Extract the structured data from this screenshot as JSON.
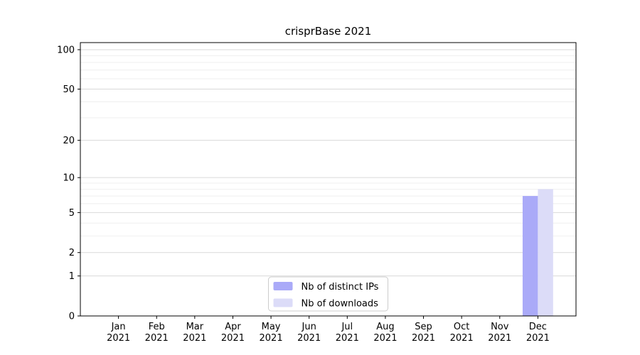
{
  "chart_data": {
    "type": "bar",
    "title": "crisprBase 2021",
    "categories": [
      "Jan",
      "Feb",
      "Mar",
      "Apr",
      "May",
      "Jun",
      "Jul",
      "Aug",
      "Sep",
      "Oct",
      "Nov",
      "Dec"
    ],
    "x_label_second_line": "2021",
    "series": [
      {
        "name": "Nb of distinct IPs",
        "color": "#aaaaf8",
        "values": [
          0,
          0,
          0,
          0,
          0,
          0,
          0,
          0,
          0,
          0,
          0,
          7
        ]
      },
      {
        "name": "Nb of downloads",
        "color": "#dcdcf8",
        "values": [
          0,
          0,
          0,
          0,
          0,
          0,
          0,
          0,
          0,
          0,
          0,
          8
        ]
      }
    ],
    "yscale": "log1p",
    "y_major_ticks": [
      0,
      1,
      2,
      5,
      10,
      20,
      50,
      100
    ],
    "y_minor_ticks": [
      3,
      4,
      6,
      7,
      8,
      9,
      30,
      40,
      60,
      70,
      80,
      90
    ],
    "ylim": [
      0,
      113
    ],
    "xlabel": "",
    "ylabel": "",
    "grid": true,
    "legend": {
      "position": "lower center"
    },
    "colors": {
      "text": "#000000",
      "axis": "#000000",
      "grid_major": "#d9d9d9",
      "grid_minor": "#eeeeee",
      "legend_border": "#cccccc",
      "legend_background": "#ffffff",
      "background": "#ffffff"
    }
  }
}
